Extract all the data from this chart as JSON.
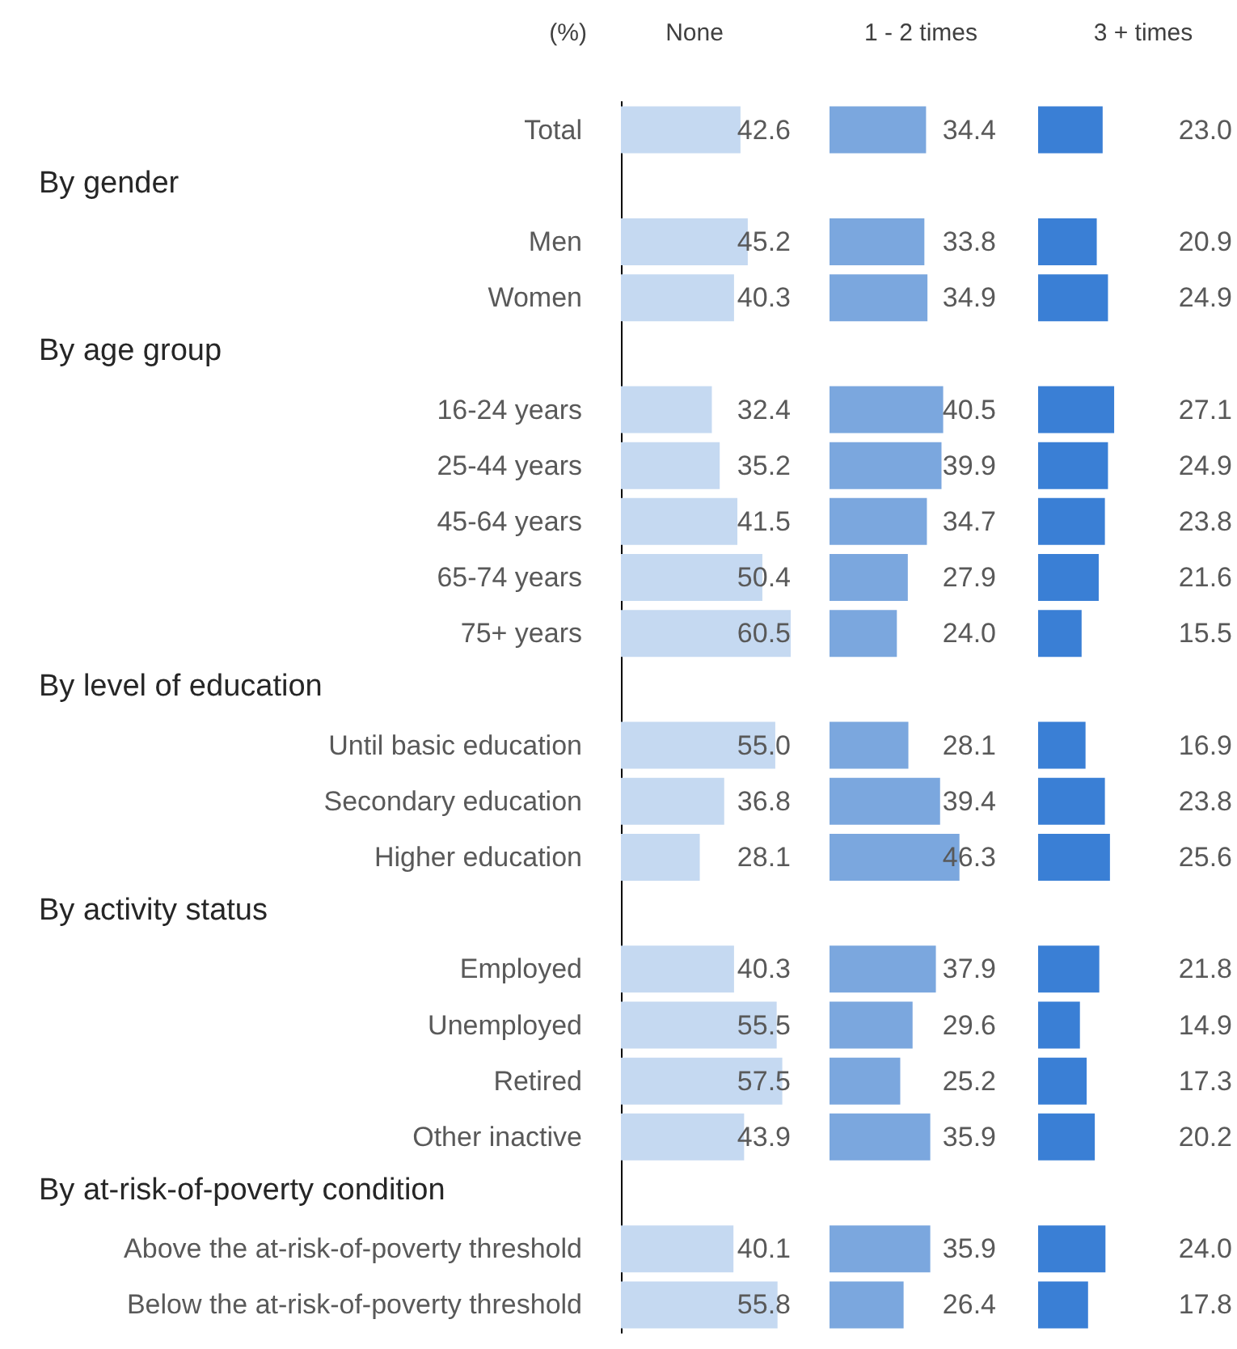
{
  "chart_data": [
    {
      "type": "bar",
      "orientation": "horizontal",
      "title": "None",
      "ylabel": "(%)",
      "tick_labels": "y",
      "categories": [
        "Total",
        null,
        "Men",
        "Women",
        null,
        "16-24 years",
        "25-44 years",
        "45-64 years",
        "65-74 years",
        "75+ years",
        null,
        "Until basic education",
        "Secondary education",
        "Higher education",
        null,
        "Employed",
        "Unemployed",
        "Retired",
        "Other inactive",
        null,
        "Above the at-risk-of-poverty threshold",
        "Below the at-risk-of-poverty threshold"
      ],
      "annotations": [
        "By gender",
        "By age group",
        "By level of education",
        "By activity status",
        "By at-risk-of-poverty condition"
      ],
      "series": [
        {
          "color": "#c5d9f1",
          "values": [
            42.6,
            null,
            45.2,
            40.3,
            null,
            32.4,
            35.2,
            41.5,
            50.4,
            60.5,
            null,
            55.0,
            36.8,
            28.1,
            null,
            40.3,
            55.5,
            57.5,
            43.9,
            null,
            40.1,
            55.8
          ],
          "value_labels": [
            "42.6",
            null,
            "45.2",
            "40.3",
            null,
            "32.4",
            "35.2",
            "41.5",
            "50.4",
            "60.5",
            null,
            "55.0",
            "36.8",
            "28.1",
            null,
            "40.3",
            "55.5",
            "57.5",
            "43.9",
            null,
            "40.1",
            "55.8"
          ]
        }
      ]
    },
    {
      "type": "bar",
      "orientation": "horizontal",
      "title": "1 - 2 times",
      "tick_labels": false,
      "series": [
        {
          "color": "#7ba7de",
          "values": [
            34.4,
            null,
            33.8,
            34.9,
            null,
            40.5,
            39.9,
            34.7,
            27.9,
            24.0,
            null,
            28.1,
            39.4,
            46.3,
            null,
            37.9,
            29.6,
            25.2,
            35.9,
            null,
            35.9,
            26.4
          ],
          "value_labels": [
            "34.4",
            null,
            "33.8",
            "34.9",
            null,
            "40.5",
            "39.9",
            "34.7",
            "27.9",
            "24.0",
            null,
            "28.1",
            "39.4",
            "46.3",
            null,
            "37.9",
            "29.6",
            "25.2",
            "35.9",
            null,
            "35.9",
            "26.4"
          ]
        }
      ]
    },
    {
      "type": "bar",
      "orientation": "horizontal",
      "title": "3 + times",
      "tick_labels": false,
      "series": [
        {
          "color": "#3a7fd5",
          "values": [
            23.0,
            null,
            20.9,
            24.9,
            null,
            27.1,
            24.9,
            23.8,
            21.6,
            15.5,
            null,
            16.9,
            23.8,
            25.6,
            null,
            21.8,
            14.9,
            17.3,
            20.2,
            null,
            24.0,
            17.8
          ],
          "value_labels": [
            "23.0",
            null,
            "20.9",
            "24.9",
            null,
            "27.1",
            "24.9",
            "23.8",
            "21.6",
            "15.5",
            null,
            "16.9",
            "23.8",
            "25.6",
            null,
            "21.8",
            "14.9",
            "17.3",
            "20.2",
            null,
            "24.0",
            "17.8"
          ]
        }
      ]
    }
  ]
}
